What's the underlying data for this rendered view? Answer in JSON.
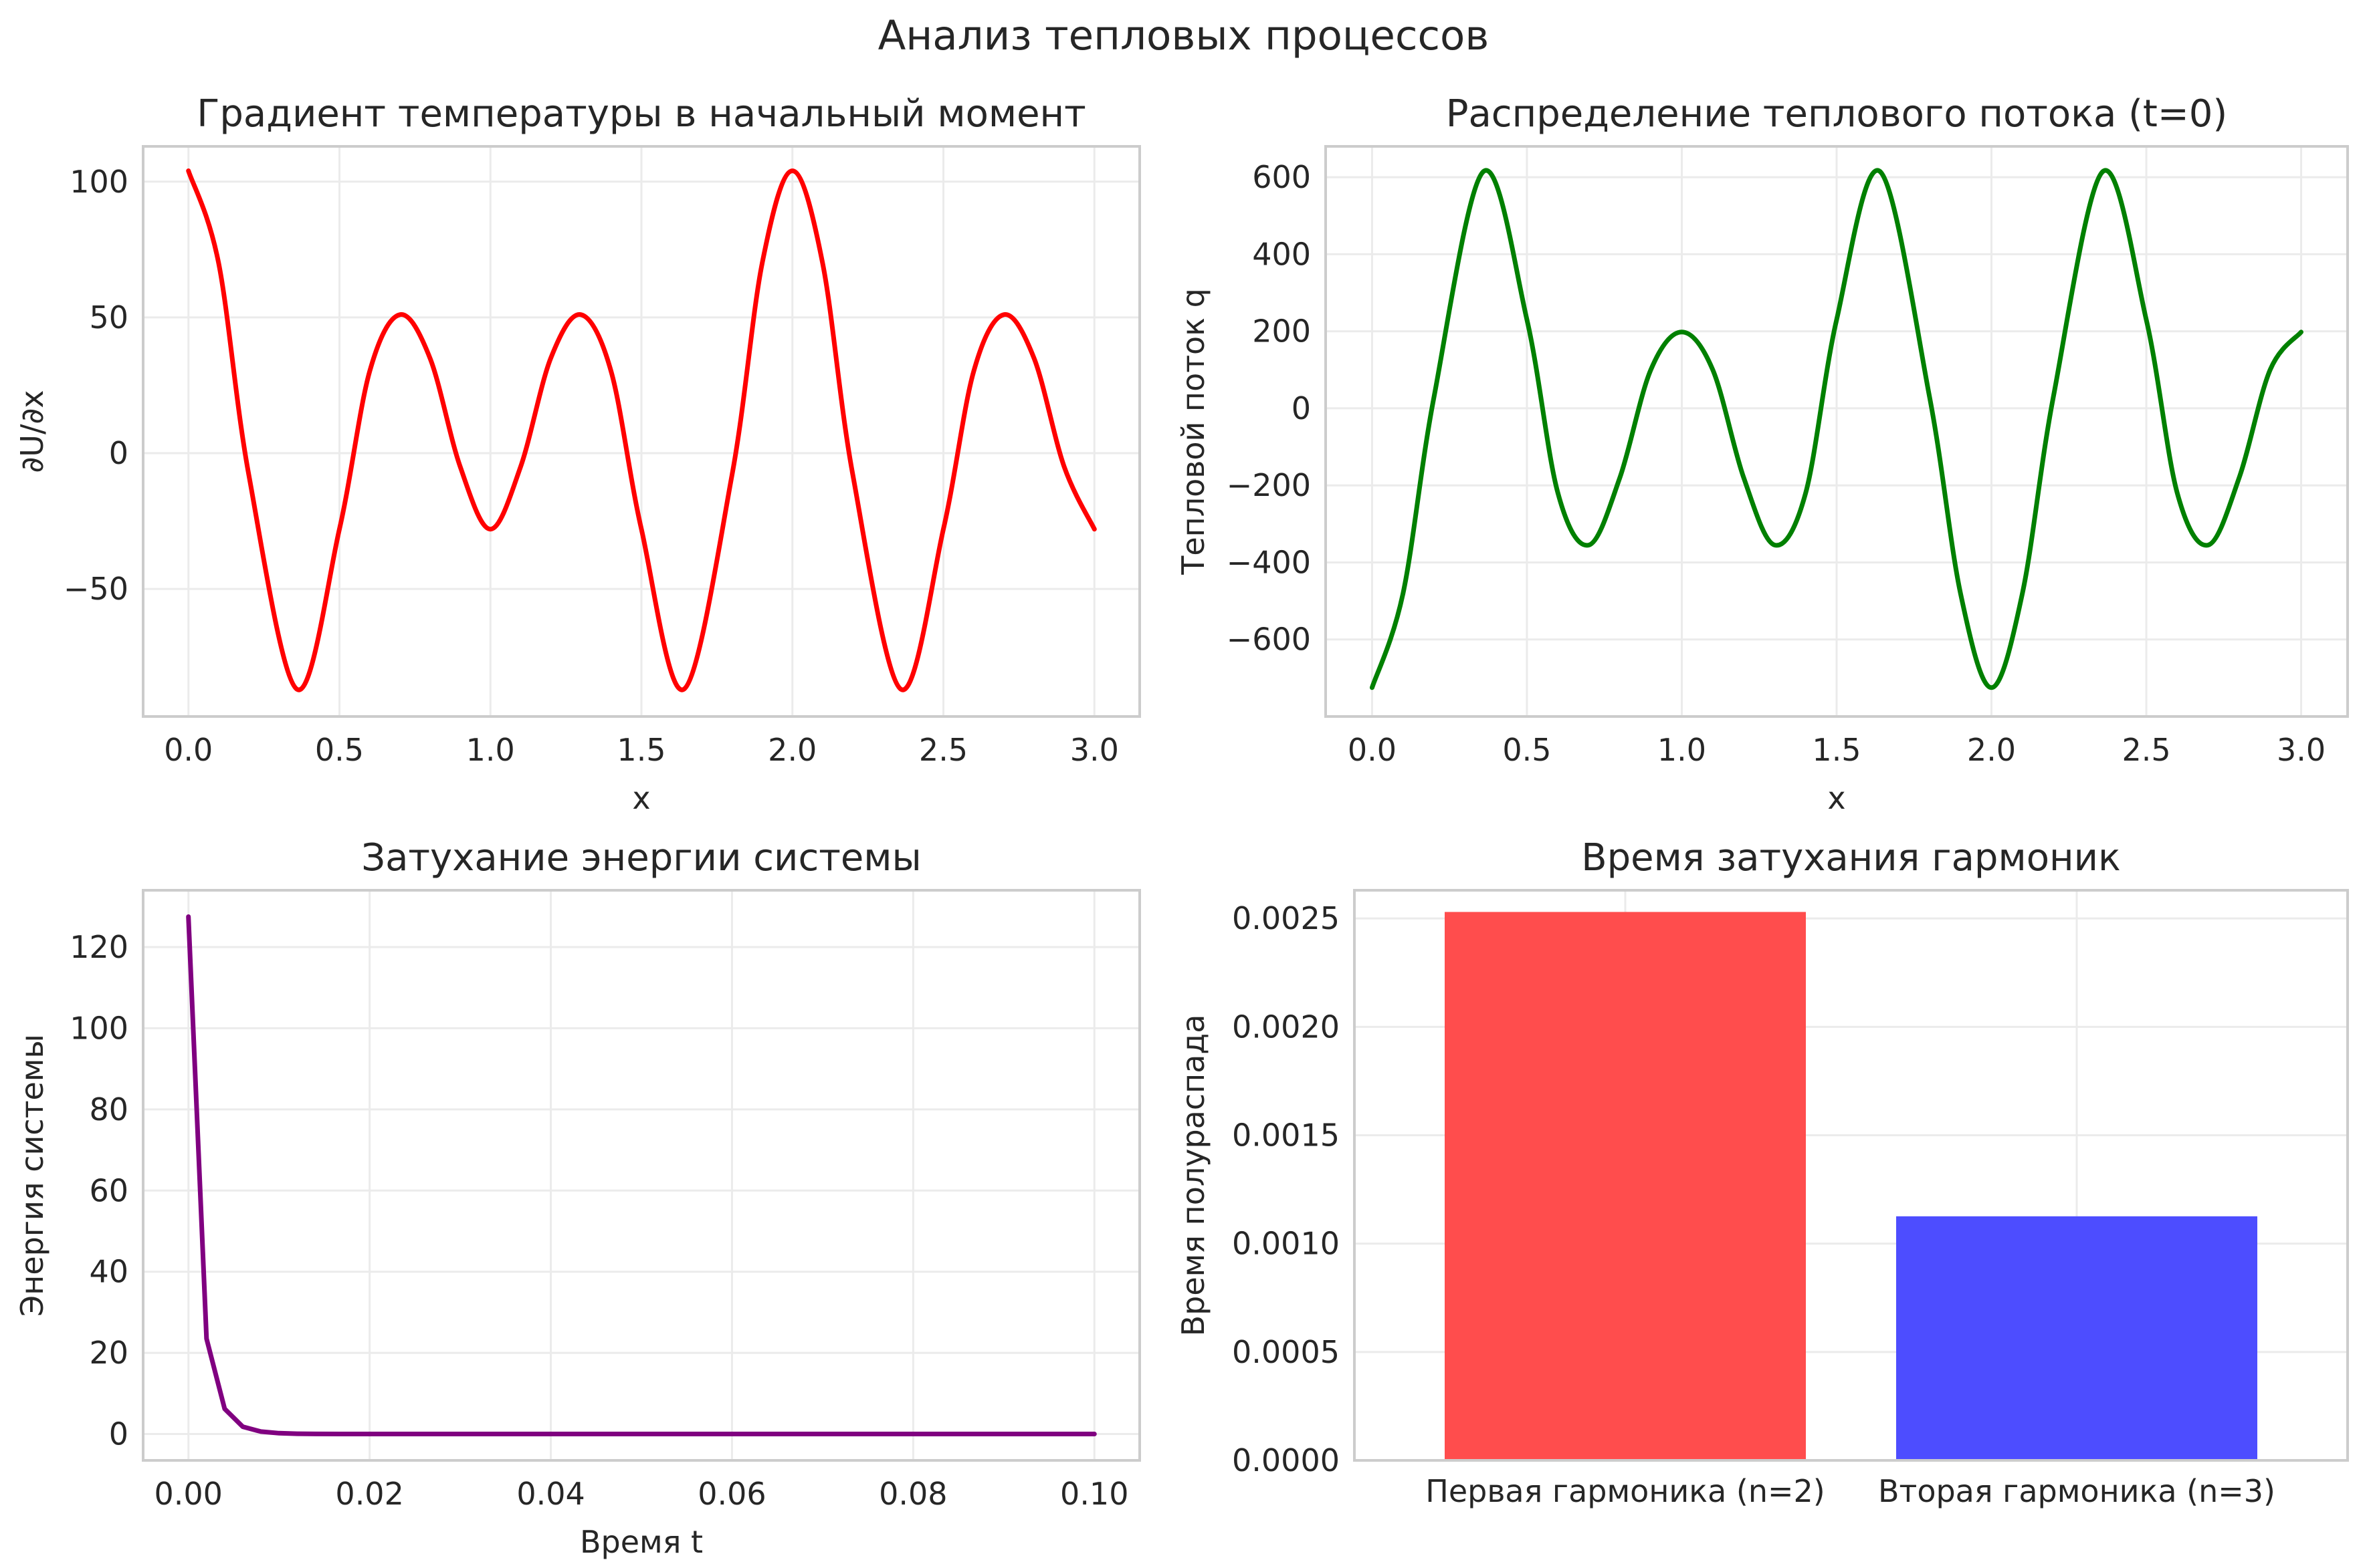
{
  "suptitle": "Анализ тепловых процессов",
  "chart_data": [
    {
      "type": "line",
      "title": "Градиент температуры в начальный момент",
      "xlabel": "x",
      "ylabel": "∂U/∂x",
      "xlim": [
        -0.15,
        3.15
      ],
      "ylim": [
        -97,
        113
      ],
      "xticks": [
        0.0,
        0.5,
        1.0,
        1.5,
        2.0,
        2.5,
        3.0
      ],
      "xtick_labels": [
        "0.0",
        "0.5",
        "1.0",
        "1.5",
        "2.0",
        "2.5",
        "3.0"
      ],
      "yticks": [
        -50,
        0,
        50,
        100
      ],
      "ytick_labels": [
        "−50",
        "0",
        "50",
        "100"
      ],
      "grid": true,
      "color": "#ff0000",
      "series": [
        {
          "name": "∂U/∂x",
          "x": [
            0.0,
            0.1,
            0.2,
            0.36,
            0.5,
            0.6,
            0.7,
            0.8,
            0.9,
            1.0,
            1.1,
            1.2,
            1.3,
            1.4,
            1.5,
            1.64,
            1.8,
            1.9,
            2.0,
            2.1,
            2.2,
            2.36,
            2.5,
            2.6,
            2.7,
            2.8,
            2.9,
            3.0
          ],
          "y": [
            104,
            70,
            -8,
            -87,
            -28,
            30,
            51,
            35,
            -5,
            -28,
            -5,
            35,
            51,
            30,
            -28,
            -87,
            -8,
            70,
            104,
            70,
            -8,
            -87,
            -28,
            30,
            51,
            35,
            -5,
            -28
          ]
        }
      ]
    },
    {
      "type": "line",
      "title": "Распределение теплового потока (t=0)",
      "xlabel": "x",
      "ylabel": "Тепловой поток q",
      "xlim": [
        -0.15,
        3.15
      ],
      "ylim": [
        -800,
        680
      ],
      "xticks": [
        0.0,
        0.5,
        1.0,
        1.5,
        2.0,
        2.5,
        3.0
      ],
      "xtick_labels": [
        "0.0",
        "0.5",
        "1.0",
        "1.5",
        "2.0",
        "2.5",
        "3.0"
      ],
      "yticks": [
        -600,
        -400,
        -200,
        0,
        200,
        400,
        600
      ],
      "ytick_labels": [
        "−600",
        "−400",
        "−200",
        "0",
        "200",
        "400",
        "600"
      ],
      "grid": true,
      "color": "#008000",
      "series": [
        {
          "name": "q",
          "x": [
            0.0,
            0.1,
            0.2,
            0.36,
            0.5,
            0.6,
            0.7,
            0.8,
            0.9,
            1.0,
            1.1,
            1.2,
            1.3,
            1.4,
            1.5,
            1.64,
            1.8,
            1.9,
            2.0,
            2.1,
            2.2,
            2.36,
            2.5,
            2.6,
            2.7,
            2.8,
            2.9,
            3.0
          ],
          "y": [
            -725,
            -480,
            30,
            615,
            230,
            -220,
            -355,
            -180,
            100,
            198,
            100,
            -180,
            -355,
            -220,
            230,
            615,
            30,
            -480,
            -725,
            -480,
            30,
            615,
            230,
            -220,
            -355,
            -180,
            100,
            198
          ]
        }
      ]
    },
    {
      "type": "line",
      "title": "Затухание энергии системы",
      "xlabel": "Время t",
      "ylabel": "Энергия системы",
      "xlim": [
        -0.005,
        0.105
      ],
      "ylim": [
        -6.5,
        134
      ],
      "xticks": [
        0.0,
        0.02,
        0.04,
        0.06,
        0.08,
        0.1
      ],
      "xtick_labels": [
        "0.00",
        "0.02",
        "0.04",
        "0.06",
        "0.08",
        "0.10"
      ],
      "yticks": [
        0,
        20,
        40,
        60,
        80,
        100,
        120
      ],
      "ytick_labels": [
        "0",
        "20",
        "40",
        "60",
        "80",
        "100",
        "120"
      ],
      "grid": true,
      "color": "#800080",
      "series": [
        {
          "name": "Энергия",
          "x": [
            0.0,
            0.002,
            0.004,
            0.006,
            0.008,
            0.01,
            0.012,
            0.014,
            0.02,
            0.04,
            0.06,
            0.08,
            0.1
          ],
          "y": [
            127.5,
            23.5,
            6.2,
            1.8,
            0.6,
            0.2,
            0.07,
            0.02,
            0.0,
            0.0,
            0.0,
            0.0,
            0.0
          ]
        }
      ]
    },
    {
      "type": "bar",
      "title": "Время затухания гармоник",
      "xlabel": "",
      "ylabel": "Время полураспада",
      "ylim": [
        0,
        0.00263
      ],
      "yticks": [
        0.0,
        0.0005,
        0.001,
        0.0015,
        0.002,
        0.0025
      ],
      "ytick_labels": [
        "0.0000",
        "0.0005",
        "0.0010",
        "0.0015",
        "0.0020",
        "0.0025"
      ],
      "grid": true,
      "categories": [
        "Первая гармоника (n=2)",
        "Вторая гармоника (n=3)"
      ],
      "values": [
        0.00253,
        0.001126
      ],
      "colors": [
        "#ff4d4d",
        "#4d4dff"
      ]
    }
  ]
}
